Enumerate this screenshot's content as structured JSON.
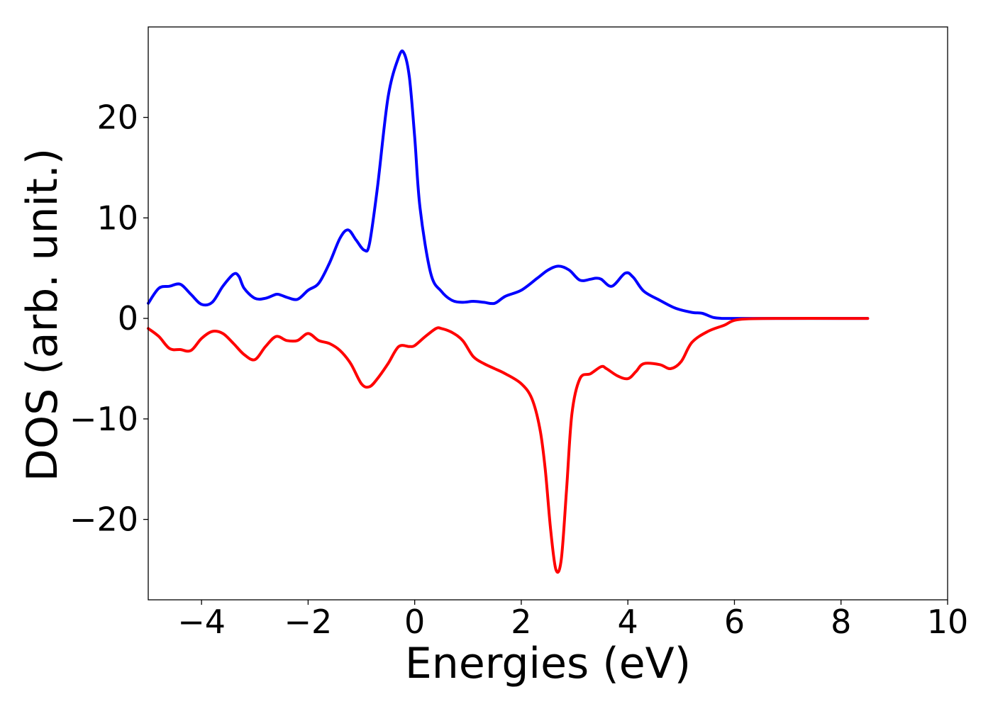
{
  "chart_data": {
    "type": "line",
    "title": "",
    "xlabel": "Energies (eV)",
    "ylabel": "DOS (arb. unit.)",
    "xlim": [
      -5,
      10
    ],
    "ylim": [
      -28,
      29
    ],
    "grid": false,
    "x_ticks": [
      -4,
      -2,
      0,
      2,
      4,
      6,
      8,
      10
    ],
    "x_tick_labels": [
      "−4",
      "−2",
      "0",
      "2",
      "4",
      "6",
      "8",
      "10"
    ],
    "y_ticks": [
      -20,
      -10,
      0,
      10,
      20
    ],
    "y_tick_labels": [
      "−20",
      "−10",
      "0",
      "10",
      "20"
    ],
    "series": [
      {
        "color": "#0000ff",
        "x": [
          -5.0,
          -4.8,
          -4.6,
          -4.4,
          -4.2,
          -4.0,
          -3.8,
          -3.6,
          -3.4,
          -3.3,
          -3.2,
          -3.0,
          -2.8,
          -2.6,
          -2.5,
          -2.4,
          -2.2,
          -2.0,
          -1.8,
          -1.6,
          -1.4,
          -1.25,
          -1.1,
          -0.95,
          -0.85,
          -0.7,
          -0.5,
          -0.3,
          -0.2,
          -0.1,
          0.0,
          0.1,
          0.3,
          0.5,
          0.7,
          0.9,
          1.1,
          1.3,
          1.5,
          1.7,
          2.0,
          2.3,
          2.5,
          2.7,
          2.9,
          3.1,
          3.3,
          3.4,
          3.5,
          3.7,
          3.95,
          4.1,
          4.3,
          4.6,
          4.9,
          5.2,
          5.4,
          5.6,
          5.8,
          6.2,
          7.0,
          8.0,
          8.5
        ],
        "y": [
          1.5,
          3.0,
          3.2,
          3.4,
          2.4,
          1.4,
          1.6,
          3.2,
          4.4,
          4.2,
          3.0,
          2.0,
          2.0,
          2.4,
          2.3,
          2.1,
          1.9,
          2.8,
          3.5,
          5.5,
          8.0,
          8.8,
          7.8,
          6.8,
          7.4,
          13.0,
          22.0,
          26.0,
          26.4,
          24.0,
          18.0,
          11.0,
          4.5,
          2.7,
          1.8,
          1.6,
          1.7,
          1.6,
          1.5,
          2.2,
          2.8,
          4.0,
          4.8,
          5.2,
          4.8,
          3.8,
          3.9,
          4.0,
          3.9,
          3.2,
          4.5,
          4.1,
          2.7,
          1.8,
          1.0,
          0.6,
          0.5,
          0.1,
          0.0,
          0.0,
          0.0,
          0.0,
          0.0
        ]
      },
      {
        "color": "#ff0000",
        "x": [
          -5.0,
          -4.8,
          -4.6,
          -4.4,
          -4.2,
          -4.0,
          -3.8,
          -3.6,
          -3.4,
          -3.2,
          -3.0,
          -2.8,
          -2.6,
          -2.4,
          -2.2,
          -2.0,
          -1.8,
          -1.6,
          -1.4,
          -1.2,
          -1.0,
          -0.85,
          -0.7,
          -0.5,
          -0.3,
          -0.1,
          0.0,
          0.2,
          0.4,
          0.5,
          0.7,
          0.9,
          1.1,
          1.3,
          1.5,
          1.7,
          2.0,
          2.2,
          2.35,
          2.45,
          2.55,
          2.65,
          2.75,
          2.85,
          2.95,
          3.1,
          3.3,
          3.5,
          3.6,
          3.8,
          4.0,
          4.15,
          4.3,
          4.6,
          4.8,
          5.0,
          5.2,
          5.5,
          5.8,
          6.1,
          7.0,
          8.0,
          8.5
        ],
        "y": [
          -1.0,
          -1.8,
          -3.0,
          -3.1,
          -3.2,
          -2.0,
          -1.3,
          -1.5,
          -2.5,
          -3.6,
          -4.1,
          -2.8,
          -1.8,
          -2.2,
          -2.2,
          -1.5,
          -2.2,
          -2.5,
          -3.2,
          -4.5,
          -6.5,
          -6.8,
          -6.0,
          -4.5,
          -2.8,
          -2.8,
          -2.7,
          -1.8,
          -1.0,
          -1.0,
          -1.4,
          -2.2,
          -3.8,
          -4.5,
          -5.0,
          -5.5,
          -6.5,
          -8.0,
          -11.0,
          -15.0,
          -21.0,
          -25.0,
          -24.0,
          -17.0,
          -9.5,
          -6.0,
          -5.5,
          -4.8,
          -5.0,
          -5.7,
          -6.0,
          -5.3,
          -4.5,
          -4.6,
          -5.0,
          -4.3,
          -2.4,
          -1.3,
          -0.7,
          -0.1,
          0.0,
          0.0,
          0.0
        ]
      }
    ]
  }
}
